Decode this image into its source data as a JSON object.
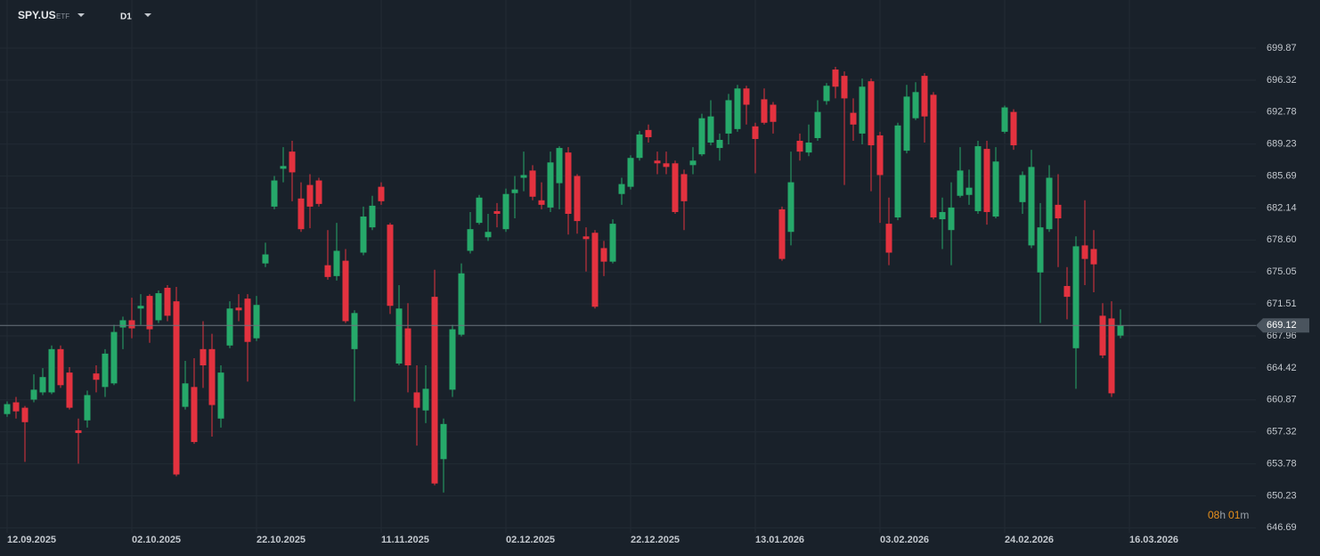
{
  "chart_data": {
    "type": "candlestick",
    "symbol": "SPY.US",
    "instrument_type": "ETF",
    "timeframe": "D1",
    "up_color": "#26a96a",
    "down_color": "#e3323f",
    "grid": true,
    "last_price": 669.12,
    "countdown": {
      "hours": "08",
      "hour_unit": "h",
      "minutes": "01",
      "minute_unit": "m"
    },
    "xlim": [
      -0.8,
      140.2
    ],
    "xticks": [
      {
        "value": 0,
        "label": "12.09.2025"
      },
      {
        "value": 14,
        "label": "02.10.2025"
      },
      {
        "value": 28,
        "label": "22.10.2025"
      },
      {
        "value": 42,
        "label": "11.11.2025"
      },
      {
        "value": 56,
        "label": "02.12.2025"
      },
      {
        "value": 70,
        "label": "22.12.2025"
      },
      {
        "value": 84,
        "label": "13.01.2026"
      },
      {
        "value": 98,
        "label": "03.02.2026"
      },
      {
        "value": 112,
        "label": "24.02.2026"
      },
      {
        "value": 126,
        "label": "16.03.2026"
      }
    ],
    "ylim": [
      646.13,
      705.21
    ],
    "yticks": [
      699.87,
      696.32,
      692.78,
      689.23,
      685.69,
      682.14,
      {
        "value": 678.6,
        "label": "678.60"
      },
      675.05,
      671.51,
      667.96,
      664.42,
      660.87,
      657.32,
      653.78,
      650.23,
      646.69
    ],
    "open": [
      659.3,
      660.6,
      660.0,
      660.9,
      661.7,
      661.7,
      666.5,
      663.9,
      657.5,
      658.6,
      663.8,
      662.3,
      662.7,
      668.9,
      669.7,
      671.0,
      672.4,
      669.7,
      673.3,
      671.8,
      660.1,
      662.3,
      666.5,
      666.5,
      658.8,
      666.9,
      671.1,
      672.1,
      667.7,
      676.0,
      682.3,
      686.5,
      688.4,
      683.2,
      684.7,
      685.2,
      675.8,
      674.6,
      676.3,
      666.5,
      677.2,
      680.0,
      684.5,
      680.3,
      664.9,
      668.8,
      661.7,
      659.7,
      672.3,
      654.3,
      662.0,
      668.1,
      677.4,
      680.5,
      678.9,
      681.8,
      679.8,
      683.8,
      685.5,
      686.3,
      683.0,
      682.2,
      684.9,
      688.3,
      685.7,
      679.0,
      679.4,
      677.7,
      676.2,
      683.7,
      684.5,
      687.7,
      690.8,
      687.4,
      687.1,
      687.1,
      685.9,
      686.9,
      688.1,
      689.4,
      688.8,
      690.4,
      690.9,
      695.4,
      691.2,
      694.2,
      693.6,
      682.0,
      679.5,
      689.6,
      688.3,
      689.9,
      694.0,
      697.5,
      696.8,
      692.7,
      690.4,
      696.2,
      690.2,
      680.4,
      681.1,
      688.5,
      692.1,
      696.8,
      694.7,
      680.9,
      679.7,
      683.5,
      683.6,
      681.8,
      688.7,
      681.2,
      690.6,
      692.8,
      682.8,
      678.0,
      675.0,
      679.8,
      682.5,
      673.5,
      666.6,
      678.0,
      677.6,
      670.2,
      669.9,
      668.0
    ],
    "high": [
      660.7,
      661.2,
      660.2,
      663.7,
      664.4,
      666.9,
      666.9,
      664.5,
      658.8,
      661.9,
      664.7,
      666.5,
      669.2,
      670.1,
      672.2,
      672.6,
      672.6,
      673.0,
      673.6,
      673.4,
      665.2,
      665.5,
      669.6,
      668.2,
      664.7,
      671.8,
      672.6,
      672.6,
      672.4,
      678.3,
      685.7,
      688.9,
      689.6,
      685.0,
      685.9,
      685.5,
      679.7,
      680.5,
      677.6,
      670.8,
      682.3,
      683.5,
      685.0,
      680.5,
      673.6,
      671.6,
      664.7,
      664.7,
      675.3,
      658.8,
      669.2,
      676.0,
      681.7,
      683.6,
      681.5,
      682.7,
      684.3,
      685.7,
      688.4,
      686.9,
      685.0,
      688.4,
      689.0,
      688.9,
      685.9,
      680.0,
      679.7,
      678.5,
      680.9,
      685.5,
      688.0,
      690.7,
      691.4,
      688.4,
      688.4,
      687.4,
      686.4,
      688.9,
      692.6,
      694.1,
      690.4,
      694.8,
      695.8,
      695.7,
      691.6,
      695.4,
      693.9,
      682.3,
      688.4,
      690.4,
      691.4,
      694.1,
      696.0,
      697.8,
      697.3,
      694.3,
      696.5,
      696.5,
      690.6,
      683.3,
      691.6,
      695.8,
      696.1,
      697.1,
      695.0,
      683.3,
      685.0,
      688.9,
      686.4,
      689.6,
      689.6,
      688.9,
      693.5,
      693.1,
      686.2,
      688.6,
      682.7,
      686.9,
      685.9,
      675.6,
      679.0,
      683.0,
      679.7,
      671.6,
      671.8,
      670.9
    ],
    "low": [
      659.0,
      658.8,
      654.0,
      660.6,
      661.4,
      661.5,
      662.2,
      659.8,
      653.8,
      657.8,
      661.7,
      661.2,
      662.5,
      666.5,
      667.7,
      669.2,
      667.2,
      669.4,
      669.6,
      652.4,
      659.8,
      656.0,
      662.2,
      656.8,
      657.8,
      666.6,
      669.6,
      662.9,
      667.4,
      675.6,
      682.0,
      685.0,
      682.9,
      679.5,
      679.9,
      682.3,
      674.2,
      674.1,
      669.4,
      660.7,
      676.9,
      679.7,
      682.5,
      670.4,
      664.7,
      661.7,
      655.8,
      658.3,
      651.4,
      650.6,
      661.2,
      667.9,
      677.1,
      680.3,
      678.5,
      680.0,
      679.5,
      681.0,
      684.0,
      683.0,
      682.0,
      681.7,
      682.0,
      679.2,
      679.3,
      675.1,
      671.0,
      674.6,
      676.0,
      682.5,
      684.2,
      687.4,
      689.4,
      685.9,
      685.9,
      681.5,
      679.7,
      685.9,
      687.9,
      689.1,
      687.4,
      689.2,
      690.6,
      691.4,
      686.0,
      691.4,
      690.4,
      676.3,
      678.0,
      687.4,
      687.9,
      689.6,
      693.6,
      694.3,
      684.7,
      689.6,
      689.2,
      684.0,
      680.5,
      675.8,
      680.8,
      688.2,
      691.9,
      689.4,
      680.9,
      677.6,
      675.8,
      683.3,
      682.5,
      681.5,
      680.3,
      681.0,
      690.4,
      688.6,
      681.5,
      677.7,
      669.4,
      679.5,
      675.6,
      669.8,
      662.1,
      673.6,
      672.8,
      665.5,
      661.2,
      667.7
    ],
    "close": [
      660.4,
      659.6,
      658.4,
      662.0,
      663.4,
      666.5,
      662.5,
      660.0,
      657.2,
      661.4,
      663.1,
      666.0,
      668.4,
      669.7,
      668.8,
      671.3,
      668.7,
      672.7,
      670.2,
      652.6,
      662.7,
      656.2,
      664.7,
      660.3,
      663.9,
      671.0,
      670.8,
      667.3,
      671.4,
      677.0,
      685.2,
      686.8,
      686.1,
      679.8,
      682.3,
      682.6,
      674.5,
      677.4,
      669.6,
      670.5,
      681.2,
      682.4,
      682.9,
      671.3,
      671.0,
      664.7,
      660.0,
      662.1,
      651.6,
      658.2,
      668.7,
      674.9,
      679.8,
      683.3,
      679.5,
      681.5,
      683.7,
      684.2,
      685.8,
      683.4,
      682.5,
      687.2,
      688.8,
      681.5,
      680.7,
      678.7,
      671.2,
      676.2,
      680.4,
      684.8,
      687.7,
      690.3,
      690.0,
      687.1,
      686.7,
      681.7,
      682.9,
      687.4,
      692.1,
      692.3,
      689.7,
      694.1,
      695.4,
      693.6,
      689.8,
      691.6,
      691.7,
      676.5,
      685.0,
      688.4,
      689.4,
      692.8,
      695.7,
      695.6,
      694.3,
      691.4,
      695.6,
      689.1,
      685.8,
      677.2,
      691.3,
      694.5,
      695.0,
      692.3,
      681.1,
      681.7,
      682.2,
      686.3,
      684.4,
      689.0,
      681.7,
      687.3,
      693.3,
      689.1,
      685.8,
      686.7,
      680.0,
      685.5,
      681.0,
      672.3,
      677.9,
      676.5,
      675.9,
      665.8,
      661.6,
      669.12
    ]
  }
}
